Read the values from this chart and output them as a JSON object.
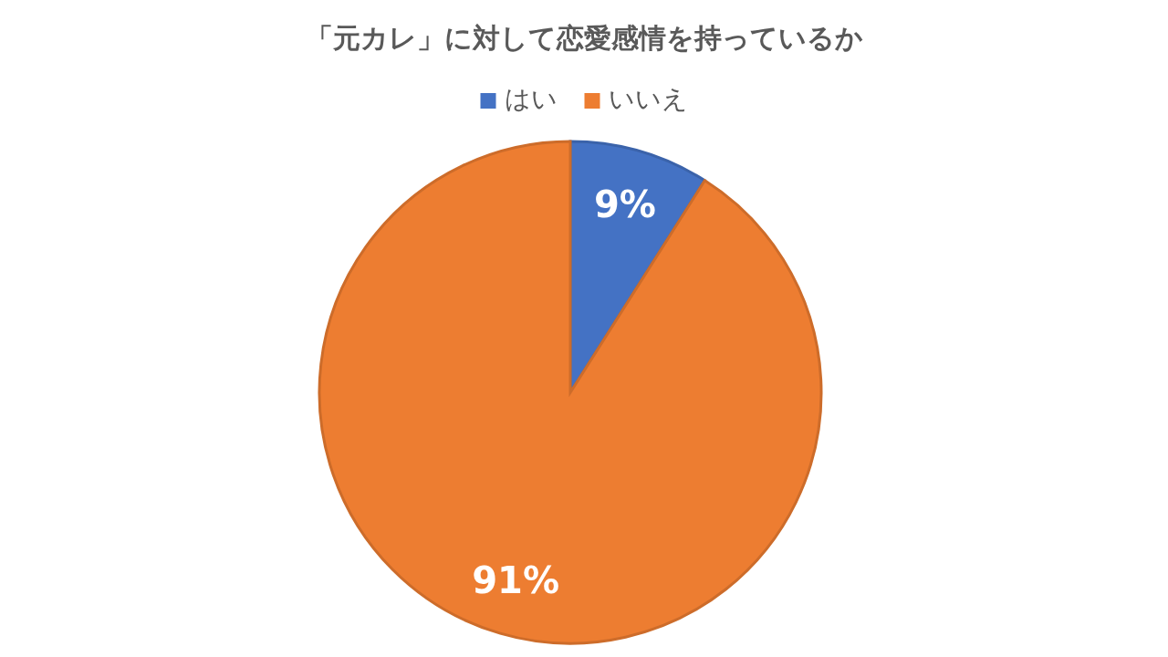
{
  "chart_data": {
    "type": "pie",
    "title": "「元カレ」に対して恋愛感情を持っているか",
    "categories": [
      "はい",
      "いいえ"
    ],
    "values": [
      9,
      91
    ],
    "colors": [
      "#4472c4",
      "#ed7d31"
    ],
    "value_labels": [
      "9%",
      "91%"
    ],
    "legend": "top"
  }
}
